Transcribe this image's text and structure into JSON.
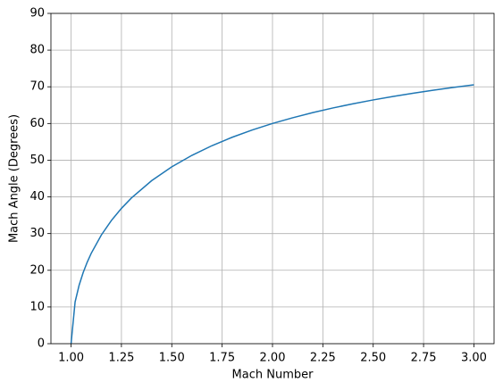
{
  "chart_data": {
    "type": "line",
    "xlabel": "Mach Number",
    "ylabel": "Mach Angle (Degrees)",
    "x": [
      1.0,
      1.02,
      1.04,
      1.06,
      1.08,
      1.1,
      1.15,
      1.2,
      1.25,
      1.3,
      1.4,
      1.5,
      1.6,
      1.7,
      1.8,
      1.9,
      2.0,
      2.1,
      2.2,
      2.3,
      2.4,
      2.5,
      2.6,
      2.7,
      2.8,
      2.9,
      3.0
    ],
    "series": [
      {
        "color": "#1f77b4",
        "values": [
          0,
          11.36,
          15.94,
          19.37,
          22.19,
          24.62,
          29.59,
          33.56,
          36.87,
          39.72,
          44.42,
          48.19,
          51.32,
          53.97,
          56.25,
          58.24,
          60.0,
          61.56,
          62.96,
          64.23,
          65.38,
          66.42,
          67.38,
          68.26,
          69.08,
          69.83,
          70.53
        ]
      }
    ],
    "xlim": [
      0.9,
      3.1
    ],
    "ylim": [
      0,
      90
    ],
    "xticks": [
      {
        "value": 1.0,
        "label": "1.00"
      },
      1.25,
      {
        "value": 1.5,
        "label": "1.50"
      },
      1.75,
      {
        "value": 2.0,
        "label": "2.00"
      },
      2.25,
      {
        "value": 2.5,
        "label": "2.50"
      },
      2.75,
      {
        "value": 3.0,
        "label": "3.00"
      }
    ],
    "yticks": [
      0,
      10,
      20,
      30,
      40,
      50,
      60,
      70,
      80,
      90
    ],
    "grid": true
  }
}
